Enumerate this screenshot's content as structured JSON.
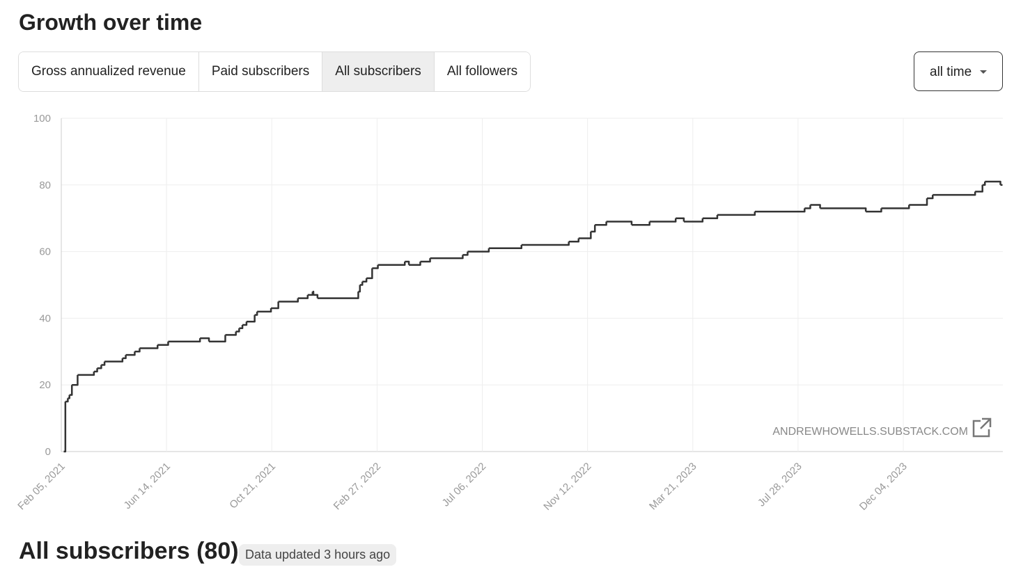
{
  "header": {
    "title": "Growth over time"
  },
  "tabs": {
    "items": [
      "Gross annualized revenue",
      "Paid subscribers",
      "All subscribers",
      "All followers"
    ],
    "selected": 2
  },
  "dropdown": {
    "label": "all time"
  },
  "chart_data": {
    "type": "line",
    "step": "after",
    "color": "#333333",
    "grid": true,
    "annotation": "ANDREWHOWELLS.SUBSTACK.COM",
    "xlim": [
      "2021-02-05",
      "2024-04-04"
    ],
    "xticks": [
      {
        "value": "2021-02-05",
        "label": "Feb 05, 2021"
      },
      {
        "value": "2021-06-14",
        "label": "Jun 14, 2021"
      },
      {
        "value": "2021-10-21",
        "label": "Oct 21, 2021"
      },
      {
        "value": "2022-02-27",
        "label": "Feb 27, 2022"
      },
      {
        "value": "2022-07-06",
        "label": "Jul 06, 2022"
      },
      {
        "value": "2022-11-12",
        "label": "Nov 12, 2022"
      },
      {
        "value": "2023-03-21",
        "label": "Mar 21, 2023"
      },
      {
        "value": "2023-07-28",
        "label": "Jul 28, 2023"
      },
      {
        "value": "2023-12-04",
        "label": "Dec 04, 2023"
      }
    ],
    "ylim": [
      0,
      100
    ],
    "yticks": [
      0,
      20,
      40,
      60,
      80,
      100
    ],
    "x": [
      "2021-02-08",
      "2021-02-10",
      "2021-02-13",
      "2021-02-15",
      "2021-02-18",
      "2021-02-25",
      "2021-03-17",
      "2021-03-21",
      "2021-03-26",
      "2021-03-30",
      "2021-04-21",
      "2021-04-25",
      "2021-05-06",
      "2021-05-12",
      "2021-06-03",
      "2021-06-16",
      "2021-07-25",
      "2021-08-05",
      "2021-08-25",
      "2021-09-07",
      "2021-09-11",
      "2021-09-15",
      "2021-09-20",
      "2021-09-30",
      "2021-10-03",
      "2021-10-20",
      "2021-10-29",
      "2021-11-22",
      "2021-12-04",
      "2021-12-10",
      "2021-12-11",
      "2021-12-16",
      "2022-02-04",
      "2022-02-06",
      "2022-02-09",
      "2022-02-14",
      "2022-02-21",
      "2022-02-28",
      "2022-04-02",
      "2022-04-07",
      "2022-04-21",
      "2022-05-03",
      "2022-06-12",
      "2022-06-18",
      "2022-07-14",
      "2022-08-23",
      "2022-10-20",
      "2022-11-01",
      "2022-11-16",
      "2022-11-21",
      "2022-12-05",
      "2023-01-05",
      "2023-01-27",
      "2023-02-28",
      "2023-03-10",
      "2023-04-02",
      "2023-04-20",
      "2023-06-05",
      "2023-08-05",
      "2023-08-12",
      "2023-08-24",
      "2023-10-19",
      "2023-11-07",
      "2023-12-11",
      "2024-01-02",
      "2024-01-09",
      "2024-03-01",
      "2024-03-10",
      "2024-03-13",
      "2024-04-01"
    ],
    "values": [
      0,
      15,
      16,
      17,
      20,
      23,
      24,
      25,
      26,
      27,
      28,
      29,
      30,
      31,
      32,
      33,
      34,
      33,
      35,
      36,
      37,
      38,
      39,
      41,
      42,
      43,
      45,
      46,
      47,
      48,
      47,
      46,
      48,
      50,
      51,
      52,
      55,
      56,
      57,
      56,
      57,
      58,
      59,
      60,
      61,
      62,
      63,
      64,
      66,
      68,
      69,
      68,
      69,
      70,
      69,
      70,
      71,
      72,
      73,
      74,
      73,
      72,
      73,
      74,
      76,
      77,
      78,
      80,
      81,
      80
    ]
  },
  "footer": {
    "title": "All subscribers (80)",
    "badge": "Data updated 3 hours ago"
  }
}
